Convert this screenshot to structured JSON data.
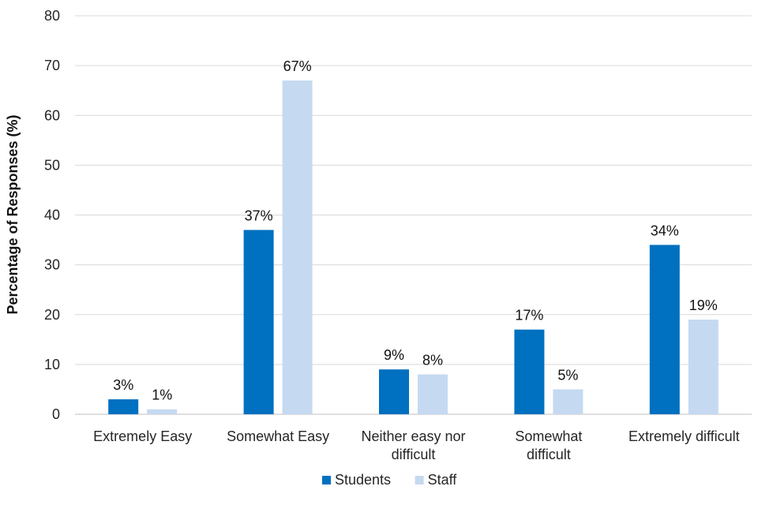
{
  "chart_data": {
    "type": "bar",
    "title": "",
    "xlabel": "",
    "ylabel": "Percentage of Responses (%)",
    "ylim": [
      0,
      80
    ],
    "yticks": [
      0,
      10,
      20,
      30,
      40,
      50,
      60,
      70,
      80
    ],
    "grid": true,
    "legend_position": "bottom",
    "categories": [
      [
        "Extremely Easy"
      ],
      [
        "Somewhat Easy"
      ],
      [
        "Neither easy nor",
        "difficult"
      ],
      [
        "Somewhat",
        "difficult"
      ],
      [
        "Extremely difficult"
      ]
    ],
    "series": [
      {
        "name": "Students",
        "color": "#0070c0",
        "values": [
          3,
          37,
          9,
          17,
          34
        ],
        "labels": [
          "3%",
          "37%",
          "9%",
          "17%",
          "34%"
        ]
      },
      {
        "name": "Staff",
        "color": "#c5d9f1",
        "values": [
          1,
          67,
          8,
          5,
          19
        ],
        "labels": [
          "1%",
          "67%",
          "8%",
          "5%",
          "19%"
        ]
      }
    ]
  }
}
